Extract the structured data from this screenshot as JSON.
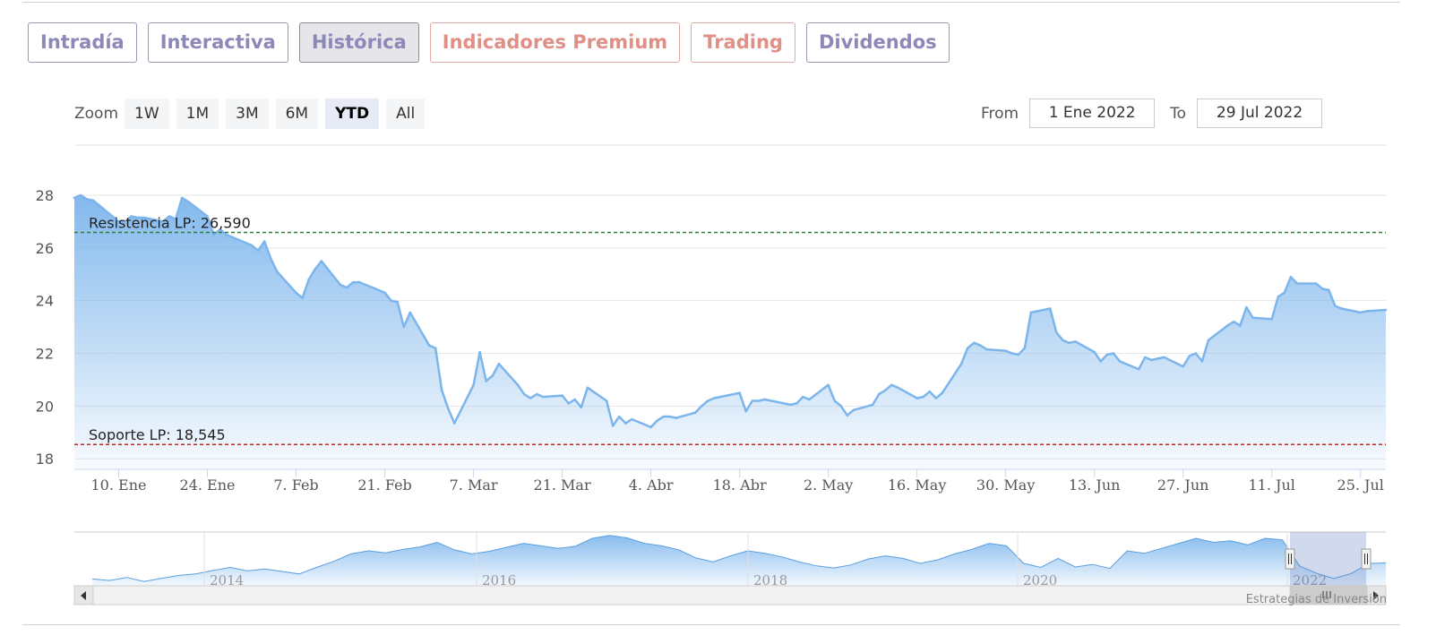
{
  "tabs": [
    {
      "label": "Intradía",
      "state": "normal"
    },
    {
      "label": "Interactiva",
      "state": "normal"
    },
    {
      "label": "Histórica",
      "state": "active"
    },
    {
      "label": "Indicadores Premium",
      "state": "premium"
    },
    {
      "label": "Trading",
      "state": "premium"
    },
    {
      "label": "Dividendos",
      "state": "normal"
    }
  ],
  "zoom": {
    "label": "Zoom",
    "buttons": [
      "1W",
      "1M",
      "3M",
      "6M",
      "YTD",
      "All"
    ],
    "selected": "YTD"
  },
  "range": {
    "from_label": "From",
    "from_value": "1 Ene 2022",
    "to_label": "To",
    "to_value": "29 Jul 2022"
  },
  "credit": "Estrategias de Inversión",
  "colors": {
    "line": "#7cb5ec",
    "resistance": "#2e7d32",
    "support": "#c62828",
    "tab_text": "#8c88b8",
    "premium_text": "#e08f87"
  },
  "chart_data": {
    "type": "area",
    "ylim": [
      17.6,
      29.8
    ],
    "yticks": [
      18,
      20,
      22,
      24,
      26,
      28
    ],
    "x_domain": [
      "2022-01-03",
      "2022-07-29"
    ],
    "xticks": [
      {
        "date": "2022-01-10",
        "label": "10. Ene"
      },
      {
        "date": "2022-01-24",
        "label": "24. Ene"
      },
      {
        "date": "2022-02-07",
        "label": "7. Feb"
      },
      {
        "date": "2022-02-21",
        "label": "21. Feb"
      },
      {
        "date": "2022-03-07",
        "label": "7. Mar"
      },
      {
        "date": "2022-03-21",
        "label": "21. Mar"
      },
      {
        "date": "2022-04-04",
        "label": "4. Abr"
      },
      {
        "date": "2022-04-18",
        "label": "18. Abr"
      },
      {
        "date": "2022-05-02",
        "label": "2. May"
      },
      {
        "date": "2022-05-16",
        "label": "16. May"
      },
      {
        "date": "2022-05-30",
        "label": "30. May"
      },
      {
        "date": "2022-06-13",
        "label": "13. Jun"
      },
      {
        "date": "2022-06-27",
        "label": "27. Jun"
      },
      {
        "date": "2022-07-11",
        "label": "11. Jul"
      },
      {
        "date": "2022-07-25",
        "label": "25. Jul"
      }
    ],
    "series": [
      {
        "points": [
          [
            "2022-01-03",
            27.9
          ],
          [
            "2022-01-04",
            28.0
          ],
          [
            "2022-01-05",
            27.85
          ],
          [
            "2022-01-06",
            27.8
          ],
          [
            "2022-01-07",
            27.6
          ],
          [
            "2022-01-10",
            27.0
          ],
          [
            "2022-01-11",
            27.0
          ],
          [
            "2022-01-12",
            27.2
          ],
          [
            "2022-01-13",
            27.15
          ],
          [
            "2022-01-14",
            27.15
          ],
          [
            "2022-01-17",
            27.0
          ],
          [
            "2022-01-18",
            27.2
          ],
          [
            "2022-01-19",
            27.1
          ],
          [
            "2022-01-20",
            27.9
          ],
          [
            "2022-01-21",
            27.75
          ],
          [
            "2022-01-24",
            27.2
          ],
          [
            "2022-01-25",
            26.5
          ],
          [
            "2022-01-26",
            26.7
          ],
          [
            "2022-01-27",
            26.5
          ],
          [
            "2022-01-28",
            26.4
          ],
          [
            "2022-01-31",
            26.1
          ],
          [
            "2022-02-01",
            25.9
          ],
          [
            "2022-02-02",
            26.25
          ],
          [
            "2022-02-03",
            25.6
          ],
          [
            "2022-02-04",
            25.1
          ],
          [
            "2022-02-07",
            24.3
          ],
          [
            "2022-02-08",
            24.1
          ],
          [
            "2022-02-09",
            24.8
          ],
          [
            "2022-02-10",
            25.2
          ],
          [
            "2022-02-11",
            25.5
          ],
          [
            "2022-02-14",
            24.6
          ],
          [
            "2022-02-15",
            24.5
          ],
          [
            "2022-02-16",
            24.7
          ],
          [
            "2022-02-17",
            24.7
          ],
          [
            "2022-02-18",
            24.6
          ],
          [
            "2022-02-21",
            24.3
          ],
          [
            "2022-02-22",
            24.0
          ],
          [
            "2022-02-23",
            23.95
          ],
          [
            "2022-02-24",
            23.0
          ],
          [
            "2022-02-25",
            23.55
          ],
          [
            "2022-02-28",
            22.3
          ],
          [
            "2022-03-01",
            22.2
          ],
          [
            "2022-03-02",
            20.6
          ],
          [
            "2022-03-03",
            19.9
          ],
          [
            "2022-03-04",
            19.35
          ],
          [
            "2022-03-07",
            20.8
          ],
          [
            "2022-03-08",
            22.05
          ],
          [
            "2022-03-09",
            20.95
          ],
          [
            "2022-03-10",
            21.15
          ],
          [
            "2022-03-11",
            21.6
          ],
          [
            "2022-03-14",
            20.8
          ],
          [
            "2022-03-15",
            20.45
          ],
          [
            "2022-03-16",
            20.3
          ],
          [
            "2022-03-17",
            20.45
          ],
          [
            "2022-03-18",
            20.35
          ],
          [
            "2022-03-21",
            20.4
          ],
          [
            "2022-03-22",
            20.1
          ],
          [
            "2022-03-23",
            20.25
          ],
          [
            "2022-03-24",
            19.95
          ],
          [
            "2022-03-25",
            20.7
          ],
          [
            "2022-03-28",
            20.2
          ],
          [
            "2022-03-29",
            19.25
          ],
          [
            "2022-03-30",
            19.6
          ],
          [
            "2022-03-31",
            19.35
          ],
          [
            "2022-04-01",
            19.5
          ],
          [
            "2022-04-04",
            19.2
          ],
          [
            "2022-04-05",
            19.45
          ],
          [
            "2022-04-06",
            19.6
          ],
          [
            "2022-04-07",
            19.6
          ],
          [
            "2022-04-08",
            19.55
          ],
          [
            "2022-04-11",
            19.75
          ],
          [
            "2022-04-12",
            20.0
          ],
          [
            "2022-04-13",
            20.2
          ],
          [
            "2022-04-14",
            20.3
          ],
          [
            "2022-04-18",
            20.5
          ],
          [
            "2022-04-19",
            19.8
          ],
          [
            "2022-04-20",
            20.2
          ],
          [
            "2022-04-21",
            20.2
          ],
          [
            "2022-04-22",
            20.25
          ],
          [
            "2022-04-25",
            20.1
          ],
          [
            "2022-04-26",
            20.05
          ],
          [
            "2022-04-27",
            20.1
          ],
          [
            "2022-04-28",
            20.35
          ],
          [
            "2022-04-29",
            20.25
          ],
          [
            "2022-05-02",
            20.8
          ],
          [
            "2022-05-03",
            20.2
          ],
          [
            "2022-05-04",
            20.0
          ],
          [
            "2022-05-05",
            19.65
          ],
          [
            "2022-05-06",
            19.85
          ],
          [
            "2022-05-09",
            20.05
          ],
          [
            "2022-05-10",
            20.45
          ],
          [
            "2022-05-11",
            20.6
          ],
          [
            "2022-05-12",
            20.8
          ],
          [
            "2022-05-13",
            20.7
          ],
          [
            "2022-05-16",
            20.3
          ],
          [
            "2022-05-17",
            20.35
          ],
          [
            "2022-05-18",
            20.55
          ],
          [
            "2022-05-19",
            20.3
          ],
          [
            "2022-05-20",
            20.5
          ],
          [
            "2022-05-23",
            21.6
          ],
          [
            "2022-05-24",
            22.2
          ],
          [
            "2022-05-25",
            22.4
          ],
          [
            "2022-05-26",
            22.3
          ],
          [
            "2022-05-27",
            22.15
          ],
          [
            "2022-05-30",
            22.1
          ],
          [
            "2022-05-31",
            22.0
          ],
          [
            "2022-06-01",
            21.95
          ],
          [
            "2022-06-02",
            22.2
          ],
          [
            "2022-06-03",
            23.55
          ],
          [
            "2022-06-06",
            23.7
          ],
          [
            "2022-06-07",
            22.8
          ],
          [
            "2022-06-08",
            22.5
          ],
          [
            "2022-06-09",
            22.4
          ],
          [
            "2022-06-10",
            22.45
          ],
          [
            "2022-06-13",
            22.05
          ],
          [
            "2022-06-14",
            21.7
          ],
          [
            "2022-06-15",
            21.95
          ],
          [
            "2022-06-16",
            22.0
          ],
          [
            "2022-06-17",
            21.7
          ],
          [
            "2022-06-20",
            21.4
          ],
          [
            "2022-06-21",
            21.85
          ],
          [
            "2022-06-22",
            21.75
          ],
          [
            "2022-06-23",
            21.8
          ],
          [
            "2022-06-24",
            21.85
          ],
          [
            "2022-06-27",
            21.5
          ],
          [
            "2022-06-28",
            21.9
          ],
          [
            "2022-06-29",
            22.0
          ],
          [
            "2022-06-30",
            21.7
          ],
          [
            "2022-07-01",
            22.5
          ],
          [
            "2022-07-04",
            23.05
          ],
          [
            "2022-07-05",
            23.2
          ],
          [
            "2022-07-06",
            23.05
          ],
          [
            "2022-07-07",
            23.75
          ],
          [
            "2022-07-08",
            23.35
          ],
          [
            "2022-07-11",
            23.3
          ],
          [
            "2022-07-12",
            24.15
          ],
          [
            "2022-07-13",
            24.3
          ],
          [
            "2022-07-14",
            24.9
          ],
          [
            "2022-07-15",
            24.65
          ],
          [
            "2022-07-18",
            24.65
          ],
          [
            "2022-07-19",
            24.45
          ],
          [
            "2022-07-20",
            24.4
          ],
          [
            "2022-07-21",
            23.8
          ],
          [
            "2022-07-22",
            23.7
          ],
          [
            "2022-07-25",
            23.55
          ],
          [
            "2022-07-26",
            23.6
          ],
          [
            "2022-07-29",
            23.65
          ]
        ]
      }
    ],
    "reference_lines": [
      {
        "label": "Resistencia LP: 26,590",
        "value": 26.59,
        "color": "#2e7d32"
      },
      {
        "label": "Soporte LP: 18,545",
        "value": 18.545,
        "color": "#c62828"
      }
    ],
    "navigator": {
      "year_labels": [
        "2014",
        "2016",
        "2018",
        "2020",
        "2022"
      ],
      "values": [
        20.5,
        20.2,
        20.8,
        20.0,
        20.6,
        21.2,
        21.5,
        22.2,
        22.8,
        22.1,
        22.5,
        22.0,
        21.5,
        22.8,
        24.0,
        25.5,
        26.1,
        25.7,
        26.4,
        26.9,
        27.8,
        26.3,
        25.5,
        26.0,
        26.8,
        27.6,
        27.1,
        26.6,
        27.0,
        28.6,
        29.2,
        28.7,
        27.6,
        27.1,
        26.3,
        24.7,
        23.9,
        25.1,
        26.1,
        25.6,
        24.9,
        23.9,
        23.1,
        22.7,
        23.3,
        24.5,
        25.1,
        24.6,
        23.6,
        24.3,
        25.5,
        26.4,
        27.6,
        27.1,
        23.6,
        22.8,
        24.6,
        22.9,
        23.4,
        22.6,
        26.1,
        25.6,
        26.6,
        27.6,
        28.6,
        27.8,
        28.1,
        27.3,
        28.6,
        28.3,
        23.1,
        21.6,
        20.6,
        21.6,
        23.6,
        23.7
      ],
      "ylim": [
        19.5,
        29.5
      ],
      "selected_range": [
        "2022-01-01",
        "2022-07-29"
      ]
    },
    "grid": true
  }
}
